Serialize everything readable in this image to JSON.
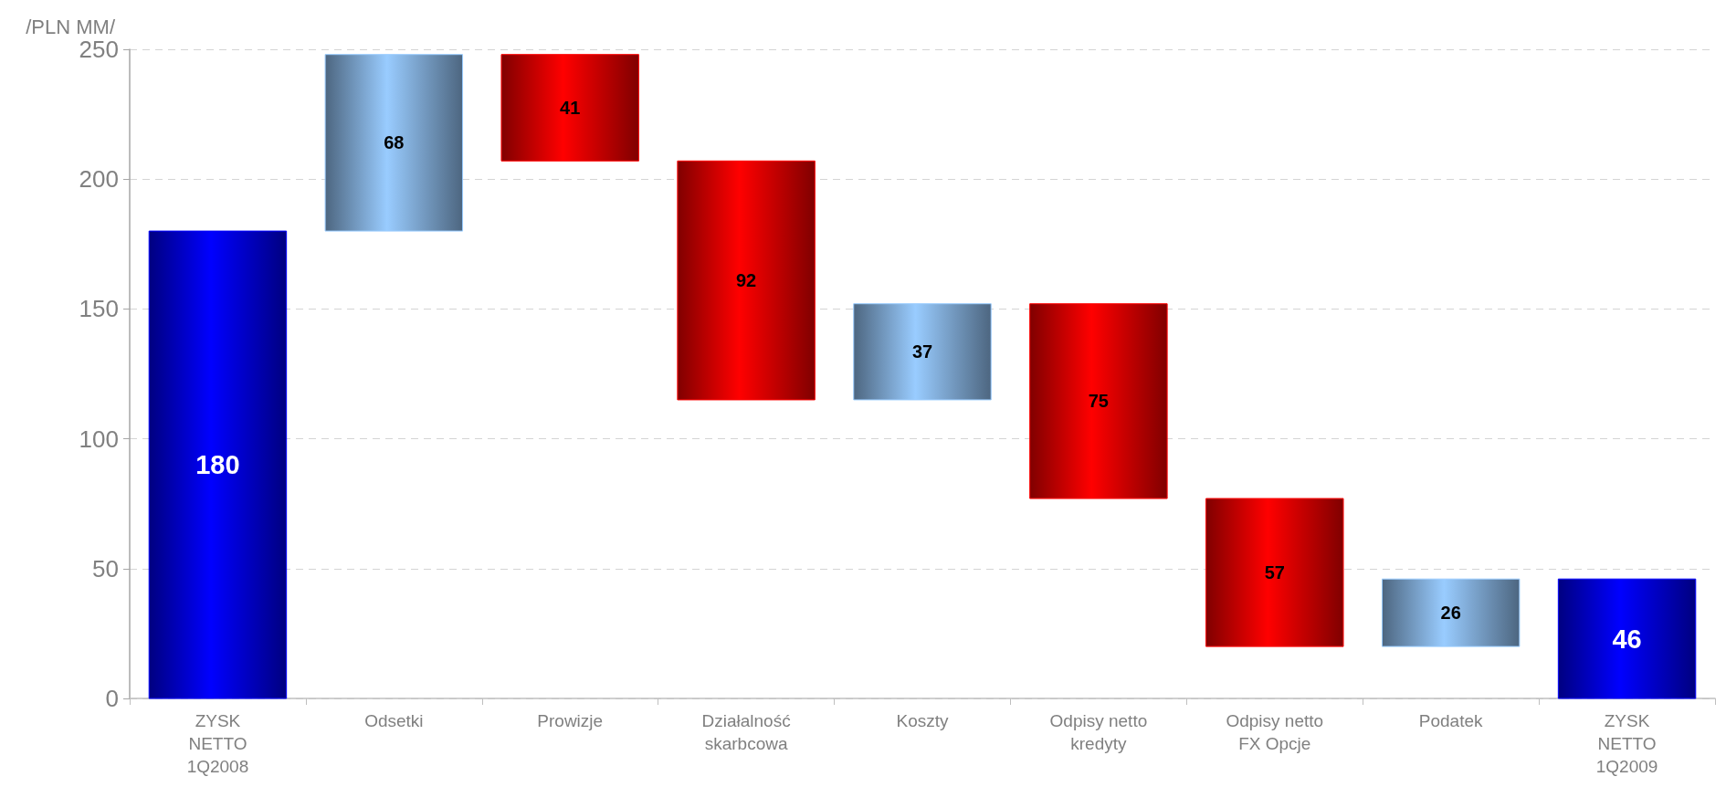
{
  "chart_data": {
    "type": "bar",
    "ylabel": "/PLN MM/",
    "categories": [
      "ZYSK\nNETTO\n1Q2008",
      "Odsetki",
      "Prowizje",
      "Działalność\nskarbcowa",
      "Koszty",
      "Odpisy netto\nkredyty",
      "Odpisy netto\nFX Opcje",
      "Podatek",
      "ZYSK\nNETTO\n1Q2009"
    ],
    "values": [
      180,
      68,
      41,
      92,
      37,
      75,
      57,
      26,
      46
    ],
    "base": [
      0,
      180,
      207,
      115,
      115,
      77,
      20,
      20,
      0
    ],
    "colors": [
      "#0000ff",
      "#99ccff",
      "#ff0000",
      "#ff0000",
      "#99ccff",
      "#ff0000",
      "#ff0000",
      "#99ccff",
      "#0000ff"
    ],
    "ylim": [
      0,
      250
    ],
    "yticks": [
      0,
      50,
      100,
      150,
      200,
      250
    ],
    "grid": "y",
    "data_labels": true
  }
}
